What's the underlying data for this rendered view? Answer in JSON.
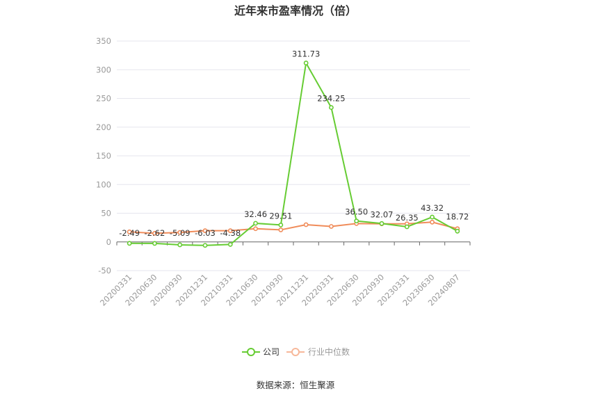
{
  "chart_data": {
    "type": "line",
    "title": "近年来市盈率情况（倍）",
    "xlabel": "",
    "ylabel": "",
    "categories": [
      "20200331",
      "20200630",
      "20200930",
      "20201231",
      "20210331",
      "20210630",
      "20210930",
      "20211231",
      "20220331",
      "20220630",
      "20220930",
      "20230331",
      "20230630",
      "20240807"
    ],
    "ylim": [
      -50,
      350
    ],
    "yticks": [
      -50,
      0,
      50,
      100,
      150,
      200,
      250,
      300,
      350
    ],
    "grid": true,
    "legend_position": "bottom-center",
    "series": [
      {
        "name": "公司",
        "color": "#66cc33",
        "values": [
          -2.49,
          -2.62,
          -5.09,
          -6.03,
          -4.38,
          32.46,
          29.51,
          311.73,
          234.25,
          36.5,
          32.07,
          26.35,
          43.32,
          18.72
        ],
        "labels": [
          "-2.49",
          "-2.62",
          "-5.09",
          "-6.03",
          "-4.38",
          "32.46",
          "29.51",
          "311.73",
          "234.25",
          "36.50",
          "32.07",
          "26.35",
          "43.32",
          "18.72"
        ]
      },
      {
        "name": "行业中位数",
        "color": "#f08c5a",
        "values": [
          17.5,
          15.0,
          16.5,
          19.5,
          19.5,
          23.0,
          21.0,
          30.0,
          27.0,
          32.0,
          31.5,
          31.5,
          34.5,
          23.0
        ]
      }
    ]
  },
  "source": "数据来源：恒生聚源"
}
